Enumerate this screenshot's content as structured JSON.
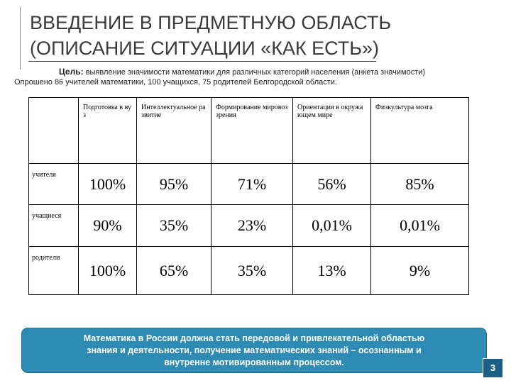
{
  "header": {
    "title_lines": [
      "ВВЕДЕНИЕ В ПРЕДМЕТНУЮ ОБЛАСТЬ",
      "(ОПИСАНИЕ СИТУАЦИИ «КАК ЕСТЬ»)"
    ]
  },
  "goal": {
    "label": "Цель:",
    "text": "выявление значимости математики для различных категорий населения (анкета значимости)"
  },
  "survey": "Опрошено 86 учителей математики, 100 учащихся, 75 родителей Белгородской области.",
  "table": {
    "columns": [
      "Подготовка в вуз",
      "Интеллектуальное развитие",
      "Формирование мировоззрения",
      "Ориентация в окружающем мире",
      "Физкультура мозга"
    ],
    "rows": [
      [
        "учителя",
        "100%",
        "95%",
        "71%",
        "56%",
        "85%"
      ],
      [
        "учащиеся",
        "90%",
        "35%",
        "23%",
        "0,01%",
        "0,01%"
      ],
      [
        "родители",
        "100%",
        "65%",
        "35%",
        "13%",
        "9%"
      ]
    ]
  },
  "callout": "Математика в России должна стать передовой и привлекательной областью знания и деятельности, получение математических знаний – осознанным и внутренне мотивированным процессом.",
  "page_number": "3"
}
